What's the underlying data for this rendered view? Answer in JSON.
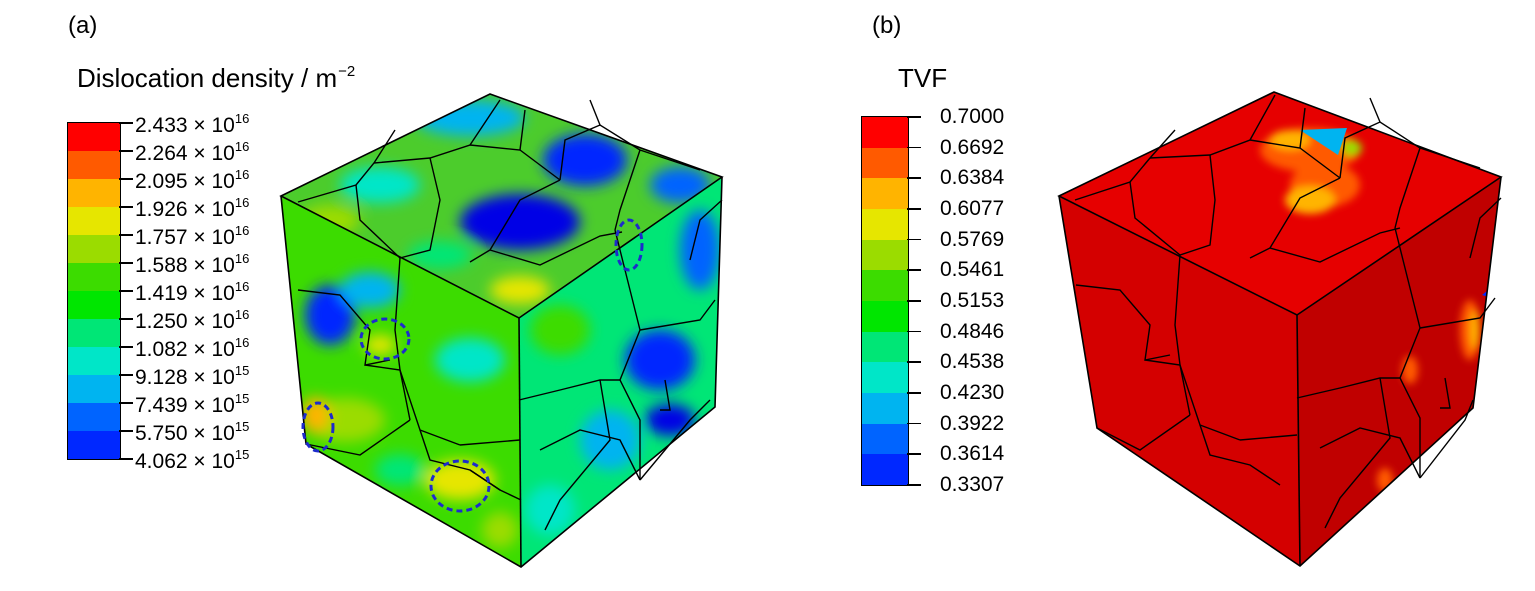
{
  "panel_a": {
    "label": "(a)",
    "legend": {
      "title": "Dislocation density / m",
      "title_exponent": "−2",
      "levels": [
        {
          "mantissa": "2.433 × 10",
          "exp": "16"
        },
        {
          "mantissa": "2.264 × 10",
          "exp": "16"
        },
        {
          "mantissa": "2.095 × 10",
          "exp": "16"
        },
        {
          "mantissa": "1.926 × 10",
          "exp": "16"
        },
        {
          "mantissa": "1.757 × 10",
          "exp": "16"
        },
        {
          "mantissa": "1.588 × 10",
          "exp": "16"
        },
        {
          "mantissa": "1.419 × 10",
          "exp": "16"
        },
        {
          "mantissa": "1.250 × 10",
          "exp": "16"
        },
        {
          "mantissa": "1.082 × 10",
          "exp": "16"
        },
        {
          "mantissa": "9.128 × 10",
          "exp": "15"
        },
        {
          "mantissa": "7.439 × 10",
          "exp": "15"
        },
        {
          "mantissa": "5.750 × 10",
          "exp": "15"
        },
        {
          "mantissa": "4.062 × 10",
          "exp": "15"
        }
      ]
    }
  },
  "panel_b": {
    "label": "(b)",
    "legend": {
      "title": "TVF",
      "levels": [
        "0.7000",
        "0.6692",
        "0.6384",
        "0.6077",
        "0.5769",
        "0.5461",
        "0.5153",
        "0.4846",
        "0.4538",
        "0.4230",
        "0.3922",
        "0.3614",
        "0.3307"
      ]
    }
  },
  "colormap": [
    "#ff0000",
    "#ff5a00",
    "#ffb400",
    "#e6e600",
    "#9bdc00",
    "#3cdc00",
    "#00e600",
    "#00e676",
    "#00e6c8",
    "#00b4f0",
    "#0064ff",
    "#0028ff",
    "#0000e6"
  ],
  "colors": {
    "cube_a_base": "#4ccc2c",
    "cube_b_base": "#e60000",
    "cube_b_side": "#c80000",
    "annotation_ellipse": "#1d2bcc",
    "grain_boundary": "#000000"
  }
}
